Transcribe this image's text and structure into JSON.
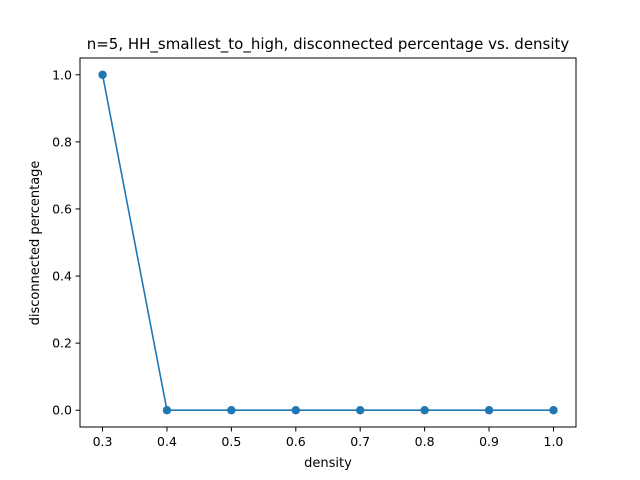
{
  "chart_data": {
    "type": "line",
    "title": "n=5, HH_smallest_to_high, disconnected percentage vs. density",
    "xlabel": "density",
    "ylabel": "disconnected percentage",
    "x": [
      0.3,
      0.4,
      0.5,
      0.6,
      0.7,
      0.8,
      0.9,
      1.0
    ],
    "series": [
      {
        "values": [
          1.0,
          0.0,
          0.0,
          0.0,
          0.0,
          0.0,
          0.0,
          0.0
        ]
      }
    ],
    "xlim": [
      0.265,
      1.035
    ],
    "ylim": [
      -0.05,
      1.05
    ],
    "x_ticks": [
      "0.3",
      "0.4",
      "0.5",
      "0.6",
      "0.7",
      "0.8",
      "0.9",
      "1.0"
    ],
    "y_ticks": [
      "0.0",
      "0.2",
      "0.4",
      "0.6",
      "0.8",
      "1.0"
    ],
    "grid": false,
    "line_color": "#1f77b4",
    "marker": "circle"
  }
}
